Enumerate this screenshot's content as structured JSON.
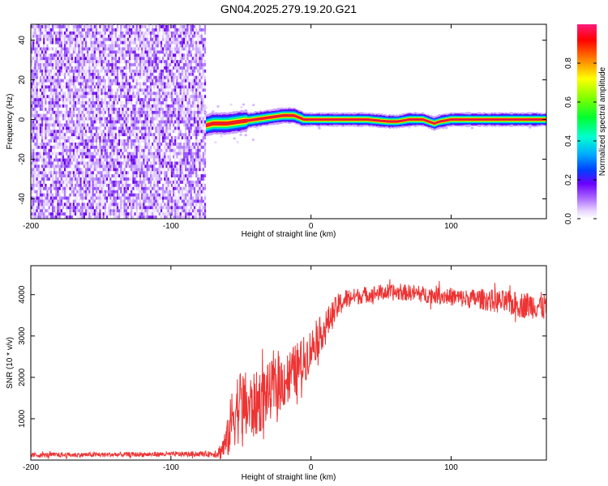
{
  "figure": {
    "title": "GN04.2025.279.19.20.G21"
  },
  "chart_data": [
    {
      "type": "heatmap",
      "title": "GN04.2025.279.19.20.G21",
      "xlabel": "Height of straight line (km)",
      "ylabel": "Frequency (Hz)",
      "xlim": [
        -200,
        168
      ],
      "ylim": [
        -50,
        48
      ],
      "xticks": [
        -200,
        -100,
        0,
        100
      ],
      "xtick_labels": [
        "-200",
        "-100",
        "0",
        "100"
      ],
      "yticks": [
        -40,
        -20,
        0,
        20,
        40
      ],
      "ytick_labels": [
        "-40",
        "-20",
        "0",
        "20",
        "40"
      ],
      "noise_region_x": [
        -200,
        -75
      ],
      "ridge": {
        "x": [
          -75,
          -70,
          -60,
          -50,
          -40,
          -30,
          -20,
          -12,
          -5,
          0,
          20,
          40,
          55,
          62,
          70,
          80,
          88,
          92,
          100,
          130,
          168
        ],
        "frequency": [
          -3,
          -2,
          -2,
          -1,
          0,
          1,
          2,
          2,
          0,
          0,
          0,
          0,
          -1,
          -1,
          0,
          0,
          -2,
          -1,
          0,
          0,
          0
        ]
      },
      "colorbar": {
        "label": "Normalized spectral amplitude",
        "range": [
          0.0,
          1.0
        ],
        "ticks": [
          0.0,
          0.2,
          0.4,
          0.6,
          0.8
        ],
        "tick_labels": [
          "0.0",
          "0.2",
          "0.4",
          "0.6",
          "0.8"
        ]
      }
    },
    {
      "type": "line",
      "xlabel": "Height of straight line (km)",
      "ylabel": "SNR (10 * v/v)",
      "xlim": [
        -200,
        168
      ],
      "ylim": [
        0,
        4700
      ],
      "xticks": [
        -200,
        -100,
        0,
        100
      ],
      "xtick_labels": [
        "-200",
        "-100",
        "0",
        "100"
      ],
      "yticks": [
        1000,
        2000,
        3000,
        4000
      ],
      "ytick_labels": [
        "1000",
        "2000",
        "3000",
        "4000"
      ],
      "series": [
        {
          "name": "SNR",
          "color": "#ee3333",
          "x": [
            -200,
            -150,
            -100,
            -70,
            -65,
            -60,
            -55,
            -50,
            -45,
            -40,
            -35,
            -30,
            -25,
            -20,
            -15,
            -10,
            -5,
            0,
            5,
            10,
            15,
            20,
            25,
            30,
            40,
            50,
            60,
            70,
            80,
            90,
            100,
            110,
            120,
            130,
            140,
            150,
            160,
            168
          ],
          "values": [
            120,
            130,
            140,
            150,
            200,
            450,
            1200,
            1350,
            1250,
            1300,
            1500,
            1650,
            1800,
            1900,
            2050,
            2200,
            2400,
            2700,
            2950,
            3200,
            3500,
            3750,
            3900,
            3950,
            4000,
            4050,
            4050,
            4050,
            4000,
            4000,
            3950,
            3900,
            3900,
            3850,
            3800,
            3750,
            3750,
            3700
          ],
          "spread": [
            60,
            60,
            60,
            70,
            200,
            450,
            900,
            900,
            850,
            800,
            800,
            700,
            700,
            700,
            650,
            650,
            600,
            500,
            450,
            400,
            350,
            300,
            250,
            200,
            200,
            200,
            200,
            200,
            200,
            220,
            220,
            230,
            250,
            280,
            300,
            320,
            330,
            350
          ]
        }
      ]
    }
  ]
}
